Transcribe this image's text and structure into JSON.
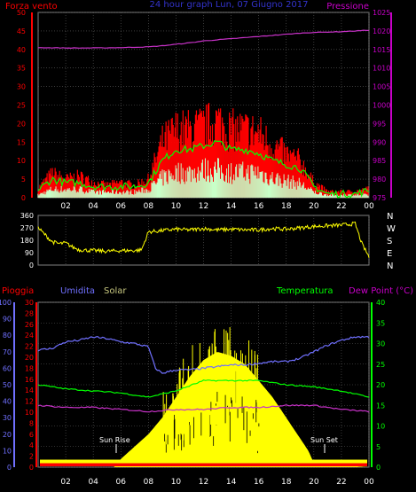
{
  "colors": {
    "background": "#000000",
    "red": "#ff0000",
    "green": "#00ff00",
    "mint": "#c8ffc8",
    "magenta": "#c832c8",
    "purple": "#c800c8",
    "yellow": "#ffff00",
    "blue": "#7070ff",
    "olive": "#c8c880",
    "grid": "#606060",
    "title_blue": "#3333cc",
    "wind_direction": "#ffff00"
  },
  "header": {
    "left_label": "Forza vento",
    "title": "24 hour graph Lun, 07 Giugno 2017",
    "right_label": "Pressione"
  },
  "x_ticks": [
    "02",
    "04",
    "06",
    "08",
    "10",
    "12",
    "14",
    "16",
    "18",
    "20",
    "22",
    "00"
  ],
  "chart_data": [
    {
      "type": "line",
      "title": "24 hour graph Lun, 07 Giugno 2017",
      "xlim": [
        0,
        24
      ],
      "left_axis": {
        "label": "Forza vento",
        "ylim": [
          0,
          50
        ],
        "ticks": [
          0,
          5,
          10,
          15,
          20,
          25,
          30,
          35,
          40,
          45,
          50
        ]
      },
      "right_axis": {
        "label": "Pressione",
        "ylim": [
          975,
          1025
        ],
        "ticks": [
          975,
          980,
          985,
          990,
          995,
          1000,
          1005,
          1010,
          1015,
          1020,
          1025
        ]
      },
      "series": [
        {
          "name": "Pressione",
          "axis": "right",
          "x": [
            0,
            2,
            4,
            6,
            8,
            9,
            10,
            11,
            12,
            13,
            14,
            15,
            16,
            17,
            18,
            19,
            20,
            21,
            22,
            23,
            24
          ],
          "values": [
            1015.5,
            1015.4,
            1015.4,
            1015.5,
            1015.7,
            1016.0,
            1016.4,
            1016.8,
            1017.3,
            1017.6,
            1017.9,
            1018.2,
            1018.5,
            1018.8,
            1019.1,
            1019.4,
            1019.6,
            1019.7,
            1019.8,
            1020.0,
            1020.2
          ]
        },
        {
          "x": [
            0,
            1,
            2,
            3,
            4,
            5,
            6,
            7,
            8,
            9,
            10,
            11,
            12,
            13,
            14,
            15,
            16,
            17,
            18,
            19,
            20,
            21,
            22,
            23,
            24
          ],
          "values": [
            3,
            8,
            6,
            7,
            5,
            4,
            5,
            4,
            6,
            18,
            22,
            22,
            23,
            25,
            22,
            22,
            21,
            17,
            14,
            12,
            5,
            2,
            2,
            2,
            3
          ]
        },
        {
          "x": [
            0,
            1,
            2,
            3,
            4,
            5,
            6,
            7,
            8,
            9,
            10,
            11,
            12,
            13,
            14,
            15,
            16,
            17,
            18,
            19,
            20,
            21,
            22,
            23,
            24
          ],
          "values": [
            2,
            5,
            4,
            4,
            3,
            3,
            3,
            3,
            4,
            10,
            13,
            13,
            14,
            15,
            13,
            13,
            12,
            10,
            9,
            8,
            3,
            1,
            1,
            1,
            2
          ]
        },
        {
          "x": [
            0,
            1,
            2,
            3,
            4,
            5,
            6,
            7,
            8,
            9,
            10,
            11,
            12,
            13,
            14,
            15,
            16,
            17,
            18,
            19,
            20,
            21,
            22,
            23,
            24
          ],
          "values": [
            1,
            3,
            3,
            3,
            2,
            2,
            2,
            2,
            3,
            7,
            9,
            9,
            10,
            10,
            9,
            9,
            9,
            7,
            6,
            5,
            2,
            1,
            1,
            1,
            1
          ]
        }
      ]
    },
    {
      "type": "line",
      "xlim": [
        0,
        24
      ],
      "ylim": [
        0,
        360
      ],
      "left_ticks": [
        0,
        90,
        180,
        270,
        360
      ],
      "right_labels": [
        "N",
        "W",
        "S",
        "E",
        "N"
      ],
      "series": [
        {
          "x": [
            0,
            0.5,
            1,
            1.5,
            2,
            2.5,
            3,
            4,
            5,
            6,
            7,
            7.5,
            8,
            9,
            10,
            11,
            12,
            13,
            14,
            15,
            16,
            17,
            18,
            19,
            20,
            21,
            22,
            23,
            23.5,
            24
          ],
          "values": [
            270,
            220,
            170,
            155,
            160,
            130,
            110,
            105,
            100,
            105,
            105,
            110,
            240,
            250,
            260,
            255,
            265,
            255,
            260,
            255,
            255,
            265,
            260,
            270,
            280,
            285,
            290,
            300,
            150,
            60
          ]
        }
      ]
    },
    {
      "type": "line",
      "xlim": [
        0,
        24
      ],
      "left_labels": {
        "pioggia": "Pioggia",
        "umidita": "Umidita",
        "solar": "Solar"
      },
      "right_labels": {
        "temperatura": "Temperatura",
        "dew_point": "Dew Point (°C)"
      },
      "rain_axis": {
        "ylim": [
          0,
          30
        ],
        "ticks": [
          0,
          2,
          4,
          6,
          8,
          10,
          12,
          14,
          16,
          18,
          20,
          22,
          24,
          26,
          28,
          30
        ]
      },
      "humidity_axis": {
        "ylim": [
          0,
          100
        ],
        "ticks": [
          0,
          10,
          20,
          30,
          40,
          50,
          60,
          70,
          80,
          90,
          100
        ]
      },
      "temperature_axis": {
        "ylim": [
          0,
          40
        ],
        "ticks": [
          0,
          5,
          10,
          15,
          20,
          25,
          30,
          35,
          40
        ]
      },
      "annotations": {
        "sunrise": "Sun Rise",
        "sunset": "Sun Set"
      },
      "series": [
        {
          "name": "Umidita",
          "axis": "humidity",
          "x": [
            0,
            1,
            2,
            3,
            4,
            5,
            6,
            7,
            8,
            8.5,
            9,
            10,
            11,
            12,
            13,
            14,
            15,
            16,
            17,
            18,
            19,
            20,
            21,
            22,
            23,
            24
          ],
          "values": [
            71,
            72,
            76,
            77,
            79,
            78,
            76,
            75,
            73,
            60,
            57,
            59,
            59,
            60,
            61,
            62,
            62,
            63,
            64,
            64,
            66,
            70,
            74,
            77,
            79,
            79
          ]
        },
        {
          "name": "Temperatura",
          "axis": "temperature",
          "x": [
            0,
            2,
            4,
            6,
            8,
            10,
            12,
            14,
            16,
            18,
            20,
            22,
            24
          ],
          "values": [
            20,
            19,
            18.5,
            18,
            17,
            18.5,
            21,
            21,
            21,
            20,
            19.5,
            18.5,
            17
          ]
        },
        {
          "name": "Dew Point (°C)",
          "axis": "temperature",
          "x": [
            0,
            2,
            4,
            6,
            8,
            10,
            12,
            14,
            16,
            18,
            20,
            22,
            24
          ],
          "values": [
            15,
            14.5,
            14.5,
            14,
            13.5,
            14,
            14,
            14.5,
            14.5,
            15,
            15,
            14,
            13.5
          ]
        },
        {
          "name": "Solar",
          "axis": "temperature",
          "x": [
            0,
            5.5,
            6,
            7,
            8,
            9,
            10,
            11,
            12,
            13,
            14,
            15,
            16,
            17,
            18,
            19,
            19.6,
            20,
            24
          ],
          "values": [
            0,
            0,
            2,
            5,
            8,
            12,
            17,
            22,
            26,
            28,
            27,
            25,
            21,
            17,
            12,
            7,
            4,
            1,
            0
          ]
        },
        {
          "name": "Pioggia",
          "axis": "rain",
          "x": [
            0,
            24
          ],
          "values": [
            0.4,
            0.4
          ]
        }
      ]
    }
  ]
}
